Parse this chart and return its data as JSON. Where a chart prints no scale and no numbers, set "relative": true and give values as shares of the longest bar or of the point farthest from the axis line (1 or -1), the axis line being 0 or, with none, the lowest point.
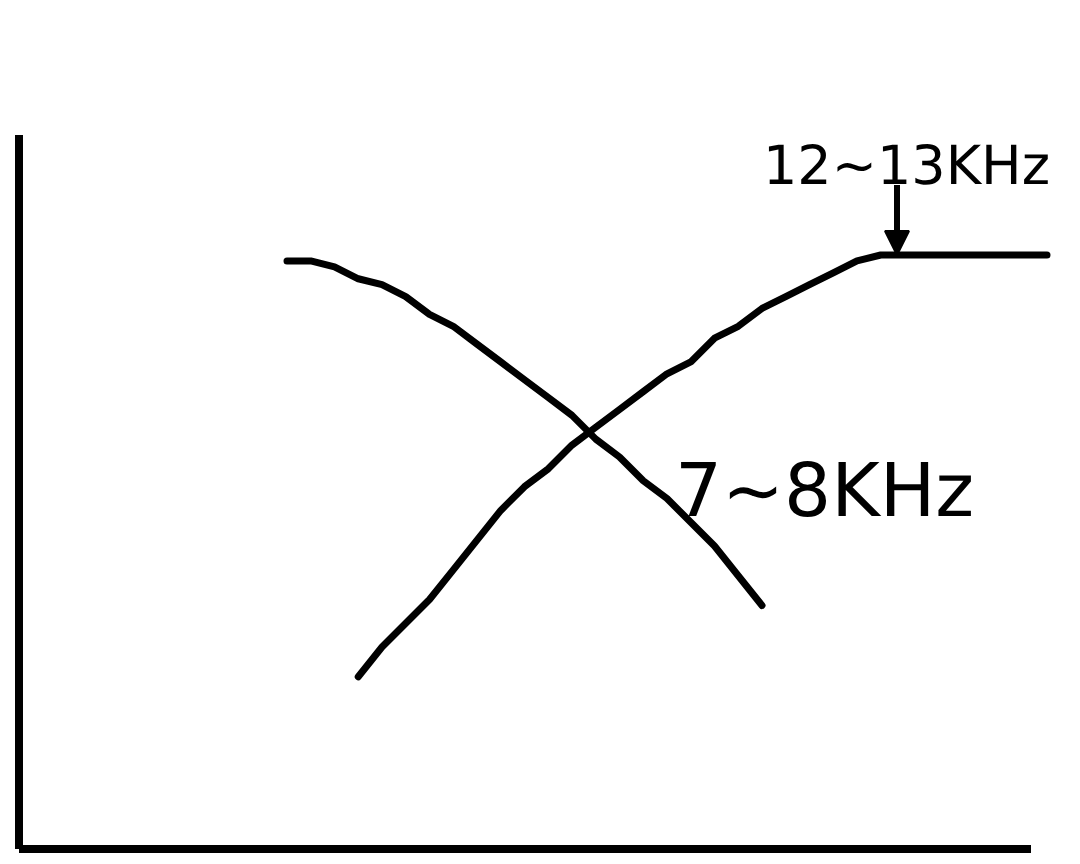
{
  "chart_data": {
    "type": "line",
    "relative": true,
    "categories": [
      null,
      null,
      null,
      null,
      null,
      null,
      null,
      null,
      null,
      null,
      null,
      null,
      null,
      null,
      null,
      null,
      null,
      null,
      null,
      null,
      null,
      null,
      null,
      null,
      null,
      null,
      null,
      null,
      null,
      null,
      null,
      null,
      null
    ],
    "series": [
      {
        "color": "#000000",
        "values": [
          0.99,
          0.99,
          0.98,
          0.96,
          0.95,
          0.93,
          0.9,
          0.88,
          0.85,
          0.82,
          0.79,
          0.76,
          0.73,
          0.69,
          0.66,
          0.62,
          0.59,
          0.55,
          0.51,
          0.46,
          0.41,
          null,
          null,
          null,
          null,
          null,
          null,
          null,
          null,
          null,
          null,
          null,
          null
        ]
      },
      {
        "color": "#000000",
        "values": [
          null,
          null,
          null,
          0.29,
          0.34,
          0.38,
          0.42,
          0.47,
          0.52,
          0.57,
          0.61,
          0.64,
          0.68,
          0.71,
          0.74,
          0.77,
          0.8,
          0.82,
          0.86,
          0.88,
          0.91,
          0.93,
          0.95,
          0.97,
          0.99,
          1.0,
          1.0,
          1.0,
          1.0,
          1.0,
          1.0,
          1.0,
          1.0
        ]
      }
    ],
    "annotations": [
      {
        "text": "12~13KHz",
        "y": 1.0
      },
      "7~8KHz"
    ]
  }
}
